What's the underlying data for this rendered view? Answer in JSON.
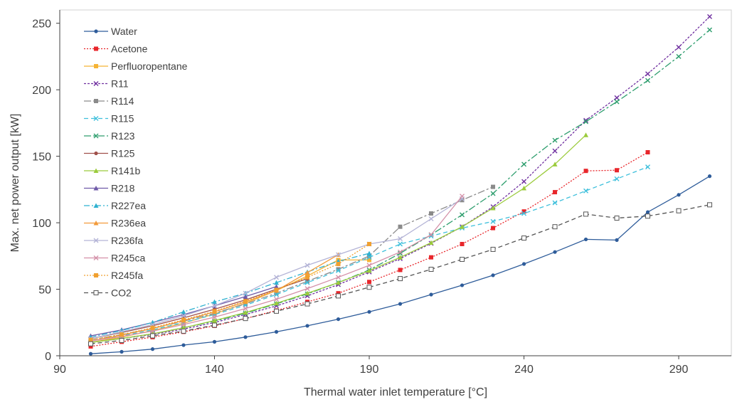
{
  "chart_data": {
    "type": "line",
    "title": "",
    "xlabel": "Thermal water inlet temperature [°C]",
    "ylabel": "Max. net power output [kW]",
    "xlim": [
      90,
      307
    ],
    "ylim": [
      0,
      260
    ],
    "xticks": [
      90,
      140,
      190,
      240,
      290
    ],
    "yticks": [
      0,
      50,
      100,
      150,
      200,
      250
    ],
    "grid": false,
    "legend": "top-left",
    "series": [
      {
        "name": "Water",
        "color": "#2e5c9a",
        "dash": "",
        "marker": "circle",
        "x": [
          100,
          110,
          120,
          130,
          140,
          150,
          160,
          170,
          180,
          190,
          200,
          210,
          220,
          230,
          240,
          250,
          260,
          270,
          280,
          290,
          300
        ],
        "y": [
          1.5,
          3,
          5,
          8,
          10.5,
          14,
          18,
          22.5,
          27.5,
          33,
          39,
          46,
          53,
          60.5,
          69,
          78,
          87.5,
          87,
          108,
          121,
          135
        ]
      },
      {
        "name": "Acetone",
        "color": "#e8262b",
        "dash": "2,2",
        "marker": "square",
        "x": [
          100,
          110,
          120,
          130,
          140,
          150,
          160,
          170,
          180,
          190,
          200,
          210,
          220,
          230,
          240,
          250,
          260,
          270,
          280
        ],
        "y": [
          7,
          10.5,
          14,
          18,
          22.5,
          28,
          34,
          40.5,
          47,
          55.5,
          64.5,
          74,
          84,
          96,
          108.5,
          123,
          139,
          139.5,
          153
        ]
      },
      {
        "name": "Perfluoropentane",
        "color": "#f5b335",
        "dash": "",
        "marker": "square",
        "x": [
          100,
          110,
          120,
          130,
          140,
          150,
          160,
          170,
          180,
          190
        ],
        "y": [
          10,
          14,
          19,
          24.5,
          31.5,
          39.5,
          49,
          60,
          72,
          72
        ]
      },
      {
        "name": "R11",
        "color": "#7030a0",
        "dash": "3,2",
        "marker": "x",
        "x": [
          100,
          110,
          120,
          130,
          140,
          150,
          160,
          170,
          180,
          190,
          200,
          210,
          220,
          230,
          240,
          250,
          260,
          270,
          280,
          290,
          300
        ],
        "y": [
          10,
          13,
          16,
          20,
          25,
          31,
          37.5,
          45,
          53.5,
          63,
          73,
          84.5,
          97,
          112,
          131,
          154,
          177,
          194,
          212,
          232,
          255
        ]
      },
      {
        "name": "R114",
        "color": "#8a8a8a",
        "dash": "10,3,3,3",
        "marker": "square",
        "x": [
          100,
          110,
          120,
          130,
          140,
          150,
          160,
          170,
          180,
          190,
          200,
          210,
          220,
          230
        ],
        "y": [
          12,
          16,
          20.5,
          26,
          32,
          39,
          47,
          56,
          65,
          75,
          97,
          107,
          117,
          127
        ]
      },
      {
        "name": "R115",
        "color": "#3fc0dc",
        "dash": "6,4",
        "marker": "x",
        "x": [
          100,
          110,
          120,
          130,
          140,
          150,
          160,
          170,
          180,
          190,
          200,
          210,
          220,
          230,
          240,
          250,
          260,
          270,
          280
        ],
        "y": [
          11,
          15,
          19.5,
          25,
          31,
          38,
          46,
          55,
          64,
          74,
          84,
          90,
          96,
          101,
          107,
          115,
          124,
          133,
          142
        ]
      },
      {
        "name": "R123",
        "color": "#2e9e6e",
        "dash": "10,3,3,3",
        "marker": "x",
        "x": [
          100,
          110,
          120,
          130,
          140,
          150,
          160,
          170,
          180,
          190,
          200,
          210,
          220,
          230,
          240,
          250,
          260,
          270,
          280,
          290,
          300
        ],
        "y": [
          10,
          13,
          16.5,
          21,
          26,
          32,
          39,
          46.5,
          55,
          64.5,
          77,
          91,
          106,
          122,
          144,
          162,
          176,
          191,
          207,
          225,
          245
        ]
      },
      {
        "name": "R125",
        "color": "#a0504a",
        "dash": "",
        "marker": "circle",
        "x": [
          100,
          110,
          120,
          130,
          140,
          150,
          160,
          170
        ],
        "y": [
          13,
          17.5,
          22.5,
          28.5,
          35,
          42,
          50,
          58
        ]
      },
      {
        "name": "R141b",
        "color": "#9bcb3c",
        "dash": "",
        "marker": "triangle",
        "x": [
          100,
          110,
          120,
          130,
          140,
          150,
          160,
          170,
          180,
          190,
          200,
          210,
          220,
          230,
          240,
          250,
          260
        ],
        "y": [
          10,
          13,
          16.5,
          21,
          26.5,
          32.5,
          39.5,
          47,
          55,
          64,
          74,
          85,
          97,
          111,
          126,
          144,
          166
        ]
      },
      {
        "name": "R218",
        "color": "#6f5aa8",
        "dash": "",
        "marker": "triangle",
        "x": [
          100,
          110,
          120,
          130,
          140,
          150,
          160
        ],
        "y": [
          15,
          19.5,
          25,
          31,
          37.5,
          44.5,
          52
        ]
      },
      {
        "name": "R227ea",
        "color": "#2fb1d0",
        "dash": "8,3,2,3",
        "marker": "triangle",
        "x": [
          100,
          110,
          120,
          130,
          140,
          150,
          160,
          170,
          180,
          190
        ],
        "y": [
          14,
          19,
          25,
          33,
          40.5,
          47,
          55,
          63,
          71,
          77
        ]
      },
      {
        "name": "R236ea",
        "color": "#f29a3a",
        "dash": "",
        "marker": "triangle",
        "x": [
          100,
          110,
          120,
          130,
          140,
          150,
          160,
          170,
          180
        ],
        "y": [
          11,
          15.5,
          20.5,
          26.5,
          33,
          40.5,
          49,
          62.5,
          76
        ]
      },
      {
        "name": "R236fa",
        "color": "#b3b3d6",
        "dash": "",
        "marker": "x",
        "x": [
          100,
          110,
          120,
          130,
          140,
          150,
          160,
          170,
          180,
          190,
          200,
          210,
          220
        ],
        "y": [
          13,
          18,
          23.5,
          30,
          37.5,
          47,
          59,
          68,
          76,
          84,
          88,
          103,
          118
        ]
      },
      {
        "name": "R245ca",
        "color": "#d490a8",
        "dash": "",
        "marker": "x",
        "x": [
          100,
          110,
          120,
          130,
          140,
          150,
          160,
          170,
          180,
          190,
          200,
          210,
          220
        ],
        "y": [
          11,
          14.5,
          18.5,
          23.5,
          29,
          35.5,
          42.5,
          50.5,
          59,
          68,
          78,
          91,
          120
        ]
      },
      {
        "name": "R245fa",
        "color": "#f0a030",
        "dash": "2,2",
        "marker": "square",
        "x": [
          100,
          110,
          120,
          130,
          140,
          150,
          160,
          170,
          180,
          190
        ],
        "y": [
          12,
          16,
          21,
          27,
          33.5,
          41,
          49.5,
          59,
          69,
          84
        ]
      },
      {
        "name": "CO2",
        "color": "#555555",
        "dash": "6,4",
        "marker": "square-open",
        "x": [
          100,
          110,
          120,
          130,
          140,
          150,
          160,
          170,
          180,
          190,
          200,
          210,
          220,
          230,
          240,
          250,
          260,
          270,
          280,
          290,
          300
        ],
        "y": [
          9,
          11.5,
          15,
          18.5,
          23,
          28,
          33.5,
          39,
          45,
          51.5,
          58,
          65,
          72.5,
          80,
          88.5,
          97,
          106.5,
          103.5,
          105,
          109,
          113.5
        ]
      }
    ]
  }
}
